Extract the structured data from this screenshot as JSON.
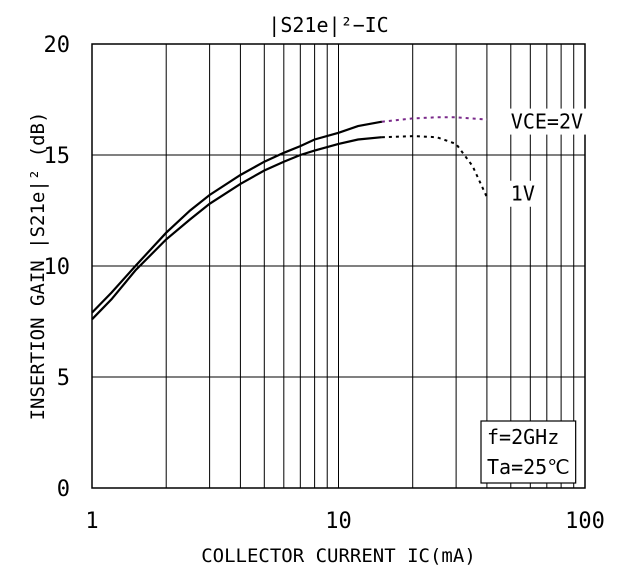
{
  "chart_data": {
    "type": "line",
    "title": "|S21e|²−IC",
    "xlabel": "COLLECTOR CURRENT IC(mA)",
    "ylabel": "INSERTION GAIN |S21e|² (dB)",
    "xscale": "log",
    "xlim": [
      1,
      100
    ],
    "ylim": [
      0,
      20
    ],
    "xticks": [
      "1",
      "10",
      "100"
    ],
    "yticks": [
      "0",
      "5",
      "10",
      "15",
      "20"
    ],
    "grid": true,
    "annotations": [
      "f=2GHz",
      "Ta=25℃"
    ],
    "series": [
      {
        "name": "VCE=2V",
        "color": "#000000",
        "extrapolated_color": "#7a2a8a",
        "x": [
          1,
          1.2,
          1.5,
          2,
          2.5,
          3,
          4,
          5,
          6,
          7,
          8,
          10,
          12,
          15
        ],
        "y": [
          7.9,
          8.8,
          10.0,
          11.5,
          12.5,
          13.2,
          14.1,
          14.7,
          15.1,
          15.4,
          15.7,
          16.0,
          16.3,
          16.5
        ],
        "x_extrapolated": [
          15,
          20,
          25,
          30,
          40
        ],
        "y_extrapolated": [
          16.5,
          16.65,
          16.7,
          16.7,
          16.6
        ]
      },
      {
        "name": "1V",
        "color": "#000000",
        "extrapolated_color": "#000000",
        "x": [
          1,
          1.2,
          1.5,
          2,
          2.5,
          3,
          4,
          5,
          6,
          7,
          8,
          10,
          12,
          15
        ],
        "y": [
          7.6,
          8.5,
          9.8,
          11.2,
          12.1,
          12.8,
          13.7,
          14.3,
          14.7,
          15.0,
          15.2,
          15.5,
          15.7,
          15.8
        ],
        "x_extrapolated": [
          15,
          20,
          25,
          30,
          35,
          40
        ],
        "y_extrapolated": [
          15.8,
          15.85,
          15.8,
          15.5,
          14.5,
          13.1
        ]
      }
    ]
  }
}
